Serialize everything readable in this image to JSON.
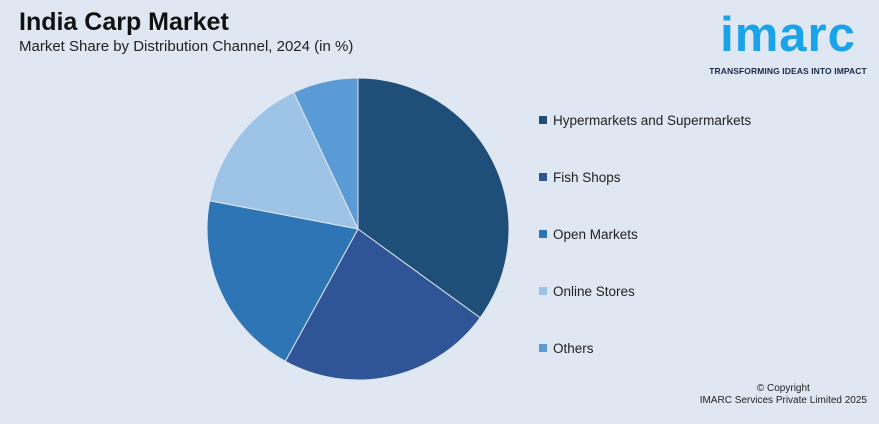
{
  "header": {
    "title": "India Carp Market",
    "subtitle": "Market Share by Distribution Channel, 2024 (in %)"
  },
  "logo": {
    "word": "imarc",
    "tagline": "TRANSFORMING IDEAS INTO IMPACT",
    "color": "#1aa3e8"
  },
  "chart_data": {
    "type": "pie",
    "title": "India Carp Market",
    "subtitle": "Market Share by Distribution Channel, 2024 (in %)",
    "start_angle_deg": 0,
    "direction": "clockwise",
    "legend_placement": "right",
    "slices": [
      {
        "label": "Hypermarkets and Supermarkets",
        "value": 35,
        "color": "#1f4e79"
      },
      {
        "label": "Fish Shops",
        "value": 23,
        "color": "#2f5597"
      },
      {
        "label": "Open Markets",
        "value": 20,
        "color": "#2e75b6"
      },
      {
        "label": "Online Stores",
        "value": 15,
        "color": "#9dc3e6"
      },
      {
        "label": "Others",
        "value": 7,
        "color": "#5b9bd5"
      }
    ]
  },
  "footer": {
    "line1": "© Copyright",
    "line2": "IMARC Services Private Limited 2025"
  }
}
